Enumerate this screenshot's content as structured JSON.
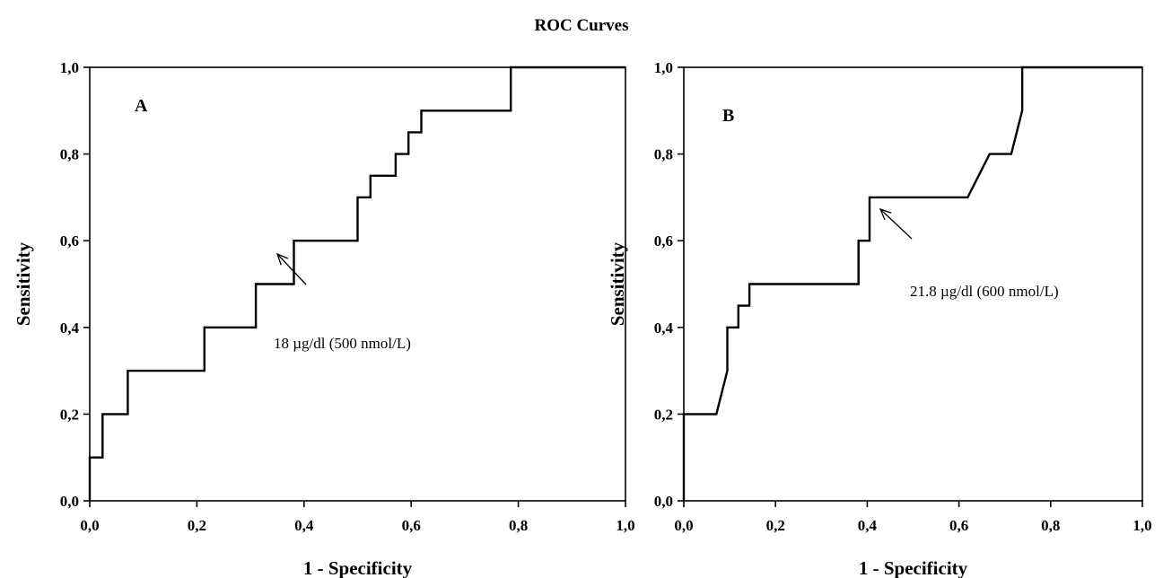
{
  "chart_data": {
    "title": "ROC Curves",
    "panels": [
      {
        "type": "line",
        "label": "A",
        "xlabel": "1 - Specificity",
        "ylabel": "Sensitivity",
        "xlim": [
          0,
          1
        ],
        "ylim": [
          0,
          1
        ],
        "x_ticks": [
          "0,0",
          "0,2",
          "0,4",
          "0,6",
          "0,8",
          "1,0"
        ],
        "y_ticks": [
          "0,0",
          "0,2",
          "0,4",
          "0,6",
          "0,8",
          "1,0"
        ],
        "grid": false,
        "series": [
          {
            "x": [
              0,
              0,
              0.024,
              0.024,
              0.071,
              0.071,
              0.214,
              0.214,
              0.31,
              0.31,
              0.381,
              0.381,
              0.5,
              0.5,
              0.524,
              0.524,
              0.571,
              0.571,
              0.595,
              0.595,
              0.619,
              0.619,
              0.786,
              0.786,
              1.0
            ],
            "y": [
              0,
              0.1,
              0.1,
              0.2,
              0.2,
              0.3,
              0.3,
              0.4,
              0.4,
              0.5,
              0.5,
              0.6,
              0.6,
              0.7,
              0.7,
              0.75,
              0.75,
              0.8,
              0.8,
              0.85,
              0.85,
              0.9,
              0.9,
              1.0,
              1.0
            ]
          }
        ],
        "annotation": {
          "text": "18 µg/dl (500 nmol/L)",
          "point": [
            0.381,
            0.6
          ]
        }
      },
      {
        "type": "line",
        "label": "B",
        "xlabel": "1 - Specificity",
        "ylabel": "Sensitivity",
        "xlim": [
          0,
          1
        ],
        "ylim": [
          0,
          1
        ],
        "x_ticks": [
          "0,0",
          "0,2",
          "0,4",
          "0,6",
          "0,8",
          "1,0"
        ],
        "y_ticks": [
          "0,0",
          "0,2",
          "0,4",
          "0,6",
          "0,8",
          "1,0"
        ],
        "grid": false,
        "series": [
          {
            "x": [
              0,
              0,
              0.071,
              0.095,
              0.095,
              0.119,
              0.119,
              0.143,
              0.143,
              0.381,
              0.381,
              0.405,
              0.405,
              0.619,
              0.667,
              0.667,
              0.714,
              0.738,
              0.738,
              1.0
            ],
            "y": [
              0,
              0.2,
              0.2,
              0.3,
              0.4,
              0.4,
              0.45,
              0.45,
              0.5,
              0.5,
              0.6,
              0.6,
              0.7,
              0.7,
              0.8,
              0.8,
              0.8,
              0.9,
              1.0,
              1.0
            ]
          }
        ],
        "annotation": {
          "text": "21.8 µg/dl (600 nmol/L)",
          "point": [
            0.405,
            0.7
          ]
        }
      }
    ]
  }
}
